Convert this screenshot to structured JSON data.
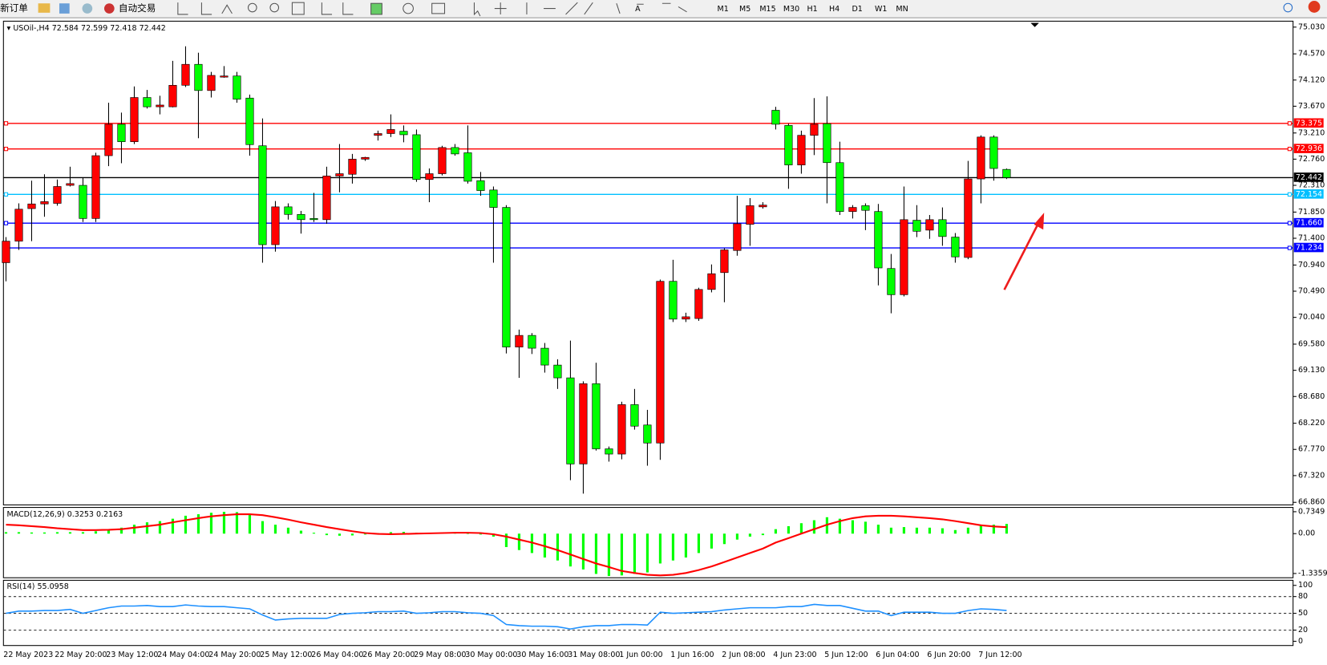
{
  "toolbar": {
    "new_order": "新订单",
    "auto_trading": "自动交易",
    "timeframes": [
      "M1",
      "M5",
      "M15",
      "M30",
      "H1",
      "H4",
      "D1",
      "W1",
      "MN"
    ]
  },
  "chart_data": [
    {
      "type": "candlestick",
      "title": "USOil-,H4",
      "categories": [
        "22 May 2023",
        null,
        null,
        null,
        "22 May 20:00",
        null,
        null,
        null,
        "23 May 12:00",
        null,
        null,
        null,
        "24 May 04:00",
        null,
        null,
        null,
        "24 May 20:00",
        null,
        null,
        null,
        "25 May 12:00",
        null,
        null,
        null,
        "26 May 04:00",
        null,
        null,
        null,
        "26 May 20:00",
        null,
        null,
        null,
        "29 May 08:00",
        null,
        null,
        null,
        "30 May 00:00",
        null,
        null,
        null,
        "30 May 16:00",
        null,
        null,
        null,
        "31 May 08:00",
        null,
        null,
        null,
        "1 Jun 00:00",
        null,
        null,
        null,
        "1 Jun 16:00",
        null,
        null,
        null,
        "2 Jun 08:00",
        null,
        null,
        null,
        "4 Jun 23:00",
        null,
        null,
        null,
        "5 Jun 12:00",
        null,
        null,
        null,
        "6 Jun 04:00",
        null,
        null,
        null,
        "6 Jun 20:00",
        null,
        null,
        null,
        "7 Jun 12:00",
        null,
        null
      ],
      "open": [
        70.98,
        71.35,
        71.91,
        71.99,
        72.0,
        72.31,
        72.31,
        71.74,
        72.82,
        73.36,
        73.06,
        73.82,
        73.66,
        73.66,
        74.03,
        74.39,
        73.94,
        74.17,
        74.19,
        73.81,
        72.99,
        71.29,
        71.94,
        71.81,
        71.74,
        71.72,
        72.47,
        72.5,
        72.76,
        73.17,
        73.2,
        73.24,
        73.18,
        72.41,
        72.51,
        72.96,
        72.87,
        72.39,
        72.23,
        71.93,
        69.53,
        69.73,
        69.51,
        69.22,
        69.0,
        67.52,
        68.9,
        67.78,
        67.69,
        68.54,
        68.19,
        67.88,
        70.66,
        70.01,
        70.02,
        70.52,
        70.81,
        71.19,
        71.64,
        71.94,
        73.6,
        73.34,
        72.66,
        73.17,
        73.37,
        72.7,
        71.86,
        71.96,
        71.86,
        70.88,
        70.43,
        71.71,
        71.54,
        71.72,
        71.42,
        71.07,
        72.42,
        73.14,
        72.584
      ],
      "high": [
        71.42,
        72.0,
        72.39,
        72.5,
        72.41,
        72.63,
        72.44,
        72.87,
        73.73,
        73.56,
        74.01,
        73.95,
        73.85,
        74.45,
        74.7,
        74.59,
        74.26,
        74.36,
        74.26,
        73.87,
        73.46,
        72.04,
        72.0,
        71.87,
        72.18,
        72.63,
        73.02,
        72.85,
        72.8,
        73.25,
        73.53,
        73.34,
        73.27,
        72.6,
        72.99,
        73.02,
        73.34,
        72.54,
        72.29,
        71.97,
        69.83,
        69.77,
        69.6,
        69.32,
        69.64,
        68.94,
        69.26,
        67.82,
        68.59,
        68.81,
        68.45,
        70.69,
        71.03,
        70.12,
        70.55,
        70.95,
        71.23,
        72.13,
        72.09,
        72.02,
        73.66,
        73.37,
        73.25,
        73.81,
        73.84,
        73.06,
        71.97,
        72.0,
        71.99,
        71.13,
        72.29,
        71.97,
        71.8,
        71.93,
        71.49,
        72.73,
        73.17,
        73.17,
        72.599
      ],
      "low": [
        70.66,
        71.2,
        71.35,
        71.77,
        71.96,
        72.29,
        71.68,
        71.68,
        72.64,
        72.69,
        73.02,
        73.63,
        73.53,
        73.65,
        74.0,
        73.12,
        73.82,
        74.16,
        73.73,
        72.82,
        70.98,
        71.17,
        71.72,
        71.48,
        71.68,
        71.65,
        72.19,
        72.34,
        72.73,
        73.08,
        73.14,
        73.05,
        72.37,
        72.02,
        72.48,
        72.82,
        72.34,
        72.13,
        70.98,
        69.42,
        69.0,
        69.41,
        69.09,
        68.81,
        67.24,
        67.01,
        67.75,
        67.56,
        67.6,
        68.11,
        67.49,
        67.59,
        69.96,
        69.96,
        69.98,
        70.47,
        70.3,
        71.1,
        71.27,
        71.91,
        73.27,
        72.25,
        72.51,
        72.83,
        72.0,
        71.8,
        71.74,
        71.54,
        70.59,
        70.11,
        70.4,
        71.42,
        71.39,
        71.27,
        70.98,
        71.04,
        72.0,
        72.39,
        72.418
      ],
      "close": [
        71.35,
        71.9,
        71.99,
        72.03,
        72.29,
        72.34,
        71.74,
        72.82,
        73.36,
        73.06,
        73.82,
        73.66,
        73.69,
        74.03,
        74.39,
        73.94,
        74.2,
        74.19,
        73.79,
        73.01,
        71.29,
        71.94,
        71.81,
        71.72,
        71.72,
        72.47,
        72.51,
        72.76,
        72.79,
        73.2,
        73.27,
        73.18,
        72.41,
        72.51,
        72.96,
        72.85,
        72.38,
        72.22,
        71.93,
        69.53,
        69.73,
        69.51,
        69.22,
        69.0,
        67.52,
        68.9,
        67.78,
        67.69,
        68.54,
        68.17,
        67.88,
        70.66,
        70.01,
        70.05,
        70.52,
        70.79,
        71.2,
        71.65,
        71.96,
        71.97,
        73.36,
        72.66,
        73.17,
        73.36,
        72.7,
        71.86,
        71.93,
        71.88,
        70.89,
        70.43,
        71.72,
        71.52,
        71.72,
        71.43,
        71.08,
        72.42,
        73.14,
        72.6,
        72.442
      ],
      "up_color": "#ff0000",
      "down_color": "#00ff00",
      "ylim": [
        66.86,
        75.03
      ],
      "yticks": [
        {
          "value": 75.03,
          "label": "75.030"
        },
        {
          "value": 74.57,
          "label": "74.570"
        },
        {
          "value": 74.12,
          "label": "74.120"
        },
        {
          "value": 73.67,
          "label": "73.670"
        },
        {
          "value": 73.21,
          "label": "73.210"
        },
        {
          "value": 72.76,
          "label": "72.760"
        },
        {
          "value": 72.31,
          "label": "72.310"
        },
        {
          "value": 71.85,
          "label": "71.850"
        },
        {
          "value": 71.4,
          "label": "71.400"
        },
        {
          "value": 70.94,
          "label": "70.940"
        },
        {
          "value": 70.49,
          "label": "70.490"
        },
        {
          "value": 70.04,
          "label": "70.040"
        },
        {
          "value": 69.58,
          "label": "69.580"
        },
        {
          "value": 69.13,
          "label": "69.130"
        },
        {
          "value": 68.68,
          "label": "68.680"
        },
        {
          "value": 68.22,
          "label": "68.220"
        },
        {
          "value": 67.77,
          "label": "67.770"
        },
        {
          "value": 67.32,
          "label": "67.320"
        },
        {
          "value": 66.86,
          "label": "66.860"
        }
      ],
      "hlines": [
        {
          "value": 73.375,
          "color": "#ff0000"
        },
        {
          "value": 72.936,
          "color": "#ff0000"
        },
        {
          "value": 72.442,
          "color": "#000000"
        },
        {
          "value": 72.154,
          "color": "#00bfff"
        },
        {
          "value": 71.66,
          "label": "71.660",
          "color": "#0000ff"
        },
        {
          "value": 71.234,
          "color": "#0000ff"
        }
      ]
    },
    {
      "type": "macd",
      "title": "MACD(12,26,9)",
      "histogram": {
        "color": "#00ff00",
        "values": [
          0.05,
          0.05,
          0.04,
          0.04,
          0.05,
          0.05,
          0.05,
          0.08,
          0.15,
          0.2,
          0.3,
          0.38,
          0.42,
          0.5,
          0.6,
          0.65,
          0.7,
          0.73,
          0.72,
          0.65,
          0.42,
          0.3,
          0.2,
          0.1,
          0.03,
          -0.05,
          -0.07,
          -0.06,
          -0.03,
          0.02,
          0.05,
          0.06,
          0.03,
          0.02,
          0.02,
          0.02,
          0.0,
          -0.03,
          -0.1,
          -0.45,
          -0.55,
          -0.65,
          -0.8,
          -0.9,
          -1.1,
          -1.2,
          -1.35,
          -1.42,
          -1.4,
          -1.35,
          -1.3,
          -1.0,
          -0.9,
          -0.8,
          -0.65,
          -0.5,
          -0.35,
          -0.2,
          -0.1,
          -0.05,
          0.15,
          0.25,
          0.35,
          0.45,
          0.55,
          0.5,
          0.45,
          0.4,
          0.3,
          0.2,
          0.22,
          0.2,
          0.2,
          0.18,
          0.12,
          0.2,
          0.3,
          0.3,
          0.3253
        ]
      },
      "signal": {
        "color": "#ff0000",
        "values": [
          0.3,
          0.28,
          0.25,
          0.22,
          0.18,
          0.15,
          0.12,
          0.12,
          0.13,
          0.15,
          0.2,
          0.25,
          0.3,
          0.38,
          0.45,
          0.52,
          0.58,
          0.62,
          0.65,
          0.65,
          0.62,
          0.55,
          0.47,
          0.38,
          0.3,
          0.22,
          0.15,
          0.08,
          0.02,
          -0.01,
          -0.02,
          -0.01,
          0.0,
          0.01,
          0.02,
          0.03,
          0.03,
          0.02,
          -0.02,
          -0.1,
          -0.2,
          -0.3,
          -0.42,
          -0.55,
          -0.7,
          -0.85,
          -1.0,
          -1.12,
          -1.25,
          -1.32,
          -1.38,
          -1.4,
          -1.38,
          -1.32,
          -1.22,
          -1.1,
          -0.95,
          -0.8,
          -0.65,
          -0.5,
          -0.3,
          -0.15,
          0.0,
          0.15,
          0.3,
          0.42,
          0.52,
          0.58,
          0.6,
          0.6,
          0.58,
          0.55,
          0.52,
          0.48,
          0.42,
          0.35,
          0.28,
          0.24,
          0.2163
        ]
      },
      "ylim": [
        -1.45,
        0.85
      ],
      "yticks": [
        0.7349,
        {
          "value": 0,
          "label": "0.00"
        },
        -1.3359
      ]
    },
    {
      "type": "rsi",
      "title": "RSI(14)",
      "color": "#1e90ff",
      "values": [
        50,
        54,
        54,
        55,
        55,
        57,
        50,
        55,
        60,
        63,
        63,
        64,
        62,
        62,
        65,
        63,
        62,
        62,
        60,
        58,
        47,
        38,
        40,
        41,
        41,
        41,
        48,
        50,
        51,
        53,
        53,
        54,
        50,
        51,
        53,
        53,
        51,
        50,
        46,
        30,
        28,
        27,
        27,
        26,
        22,
        26,
        28,
        28,
        30,
        30,
        29,
        52,
        50,
        51,
        52,
        53,
        56,
        58,
        60,
        60,
        60,
        62,
        62,
        66,
        64,
        64,
        59,
        54,
        54,
        46,
        52,
        52,
        52,
        50,
        50,
        55,
        58,
        57,
        55.0958
      ],
      "ylim": [
        0,
        100
      ],
      "yticks": [
        100,
        80,
        50,
        20,
        0
      ],
      "levels": [
        80,
        50,
        20
      ]
    }
  ]
}
